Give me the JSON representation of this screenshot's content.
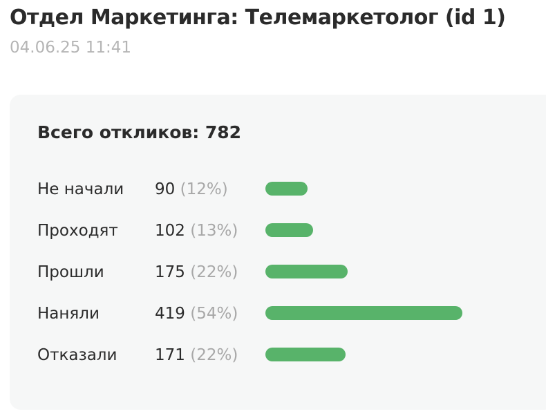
{
  "header": {
    "title": "Отдел Маркетинга: Телемаркетолог (id 1)",
    "timestamp": "04.06.25 11:41"
  },
  "card": {
    "total_label": "Всего откликов: 782"
  },
  "colors": {
    "bar": "#58b36a",
    "text": "#2b2b2b",
    "muted": "#a8a8a8",
    "card_bg": "#f6f7f7"
  },
  "chart_data": {
    "type": "bar",
    "orientation": "horizontal",
    "total": 782,
    "categories": [
      "Не начали",
      "Проходят",
      "Прошли",
      "Наняли",
      "Отказали"
    ],
    "values": [
      90,
      102,
      175,
      419,
      171
    ],
    "percent_labels": [
      "(12%)",
      "(13%)",
      "(22%)",
      "(54%)",
      "(22%)"
    ],
    "percents": [
      12,
      13,
      22,
      54,
      22
    ],
    "series": [
      {
        "values": [
          90,
          102,
          175,
          419,
          171
        ]
      }
    ]
  }
}
